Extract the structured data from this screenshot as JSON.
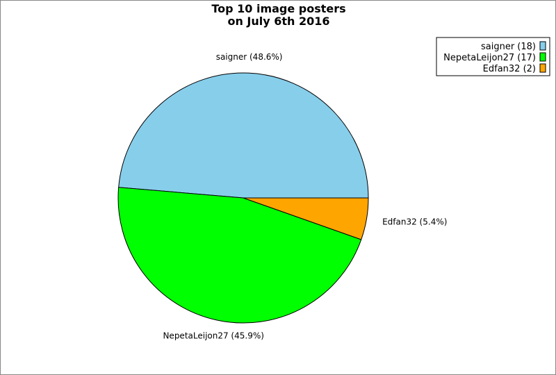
{
  "chart_data": {
    "type": "pie",
    "title": "Top 10 image posters",
    "subtitle": "on July 6th 2016",
    "slices": [
      {
        "name": "saigner",
        "value": 18,
        "percent_label": "48.6%",
        "color": "#87CEEB"
      },
      {
        "name": "NepetaLeijon27",
        "value": 17,
        "percent_label": "45.9%",
        "color": "#00FF00"
      },
      {
        "name": "Edfan32",
        "value": 2,
        "percent_label": "5.4%",
        "color": "#FFA500"
      }
    ],
    "slice_labels": [
      "saigner (48.6%)",
      "NepetaLeijon27 (45.9%)",
      "Edfan32 (5.4%)"
    ],
    "legend": {
      "placement": "top-right",
      "entries": [
        "saigner (18)",
        "NepetaLeijon27 (17)",
        "Edfan32 (2)"
      ]
    }
  }
}
